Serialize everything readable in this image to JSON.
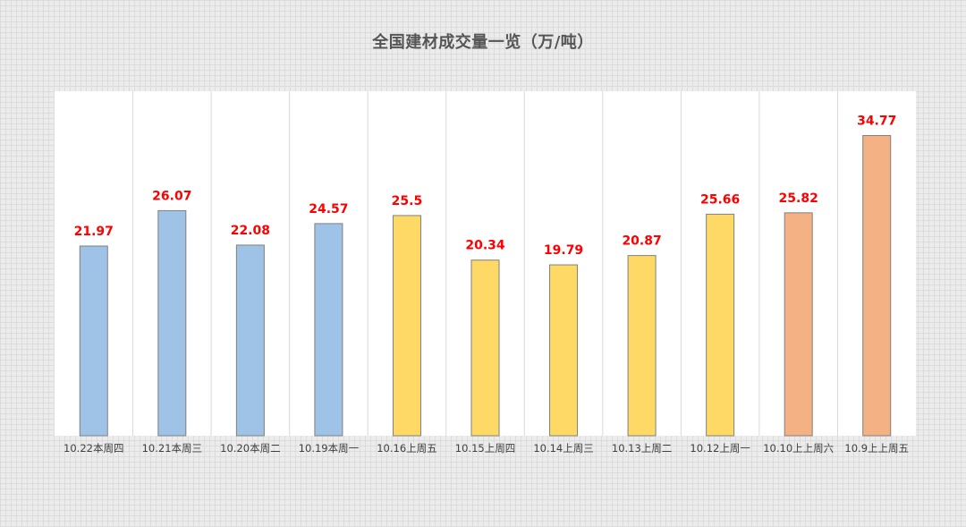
{
  "chart_data": {
    "type": "bar",
    "title": "全国建材成交量一览（万/吨）",
    "xlabel": "",
    "ylabel": "",
    "ylim": [
      0,
      38
    ],
    "grid": "vertical category separators",
    "categories": [
      "10.22本周四",
      "10.21本周三",
      "10.20本周二",
      "10.19本周一",
      "10.16上周五",
      "10.15上周四",
      "10.14上周三",
      "10.13上周二",
      "10.12上周一",
      "10.10上上周六",
      "10.9上上周五"
    ],
    "values": [
      21.97,
      26.07,
      22.08,
      24.57,
      25.5,
      20.34,
      19.79,
      20.87,
      25.66,
      25.82,
      34.77
    ],
    "data_labels": [
      "21.97",
      "26.07",
      "22.08",
      "24.57",
      "25.5",
      "20.34",
      "19.79",
      "20.87",
      "25.66",
      "25.82",
      "34.77"
    ],
    "bar_colors": [
      "#9fc3e7",
      "#9fc3e7",
      "#9fc3e7",
      "#9fc3e7",
      "#ffd966",
      "#ffd966",
      "#ffd966",
      "#ffd966",
      "#ffd966",
      "#f4b183",
      "#f4b183"
    ],
    "colors": {
      "data_label": "#ff0000",
      "bar_border": "#7f7f7f",
      "gridline": "#d9d9d9",
      "tick_label": "#404040"
    }
  }
}
